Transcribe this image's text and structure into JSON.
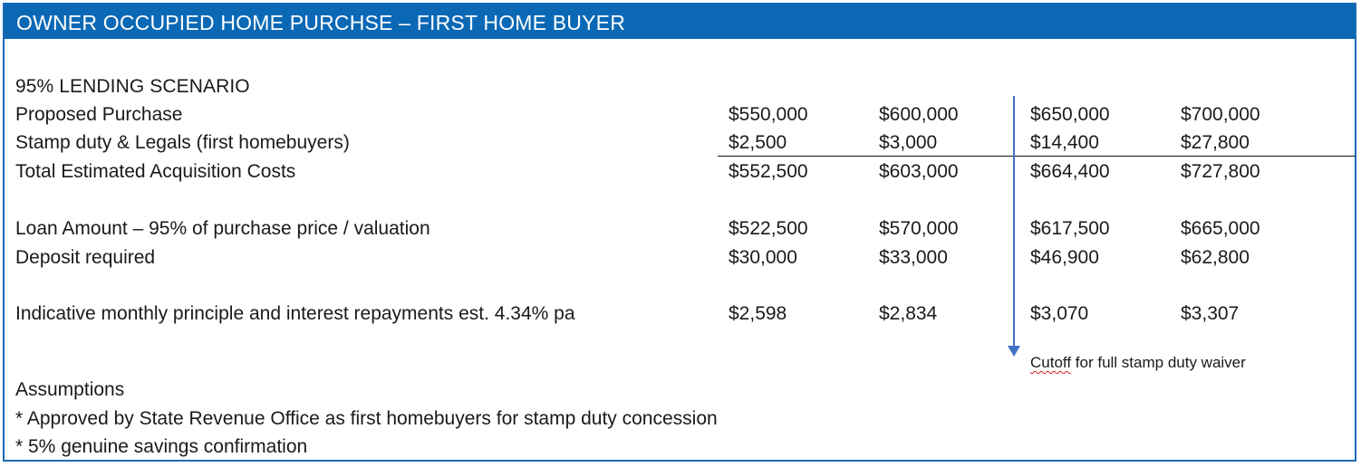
{
  "title": "OWNER OCCUPIED HOME PURCHSE – FIRST HOME BUYER",
  "scenario_heading": "95% LENDING SCENARIO",
  "rows": [
    {
      "label": "Proposed Purchase",
      "values": [
        "$550,000",
        "$600,000",
        "$650,000",
        "$700,000"
      ]
    },
    {
      "label": "Stamp duty & Legals (first homebuyers)",
      "values": [
        "$2,500",
        "$3,000",
        "$14,400",
        "$27,800"
      ]
    },
    {
      "label": "Total Estimated Acquisition Costs",
      "values": [
        "$552,500",
        "$603,000",
        "$664,400",
        "$727,800"
      ]
    },
    {
      "label": "Loan Amount – 95% of purchase price / valuation",
      "values": [
        "$522,500",
        "$570,000",
        "$617,500",
        "$665,000"
      ]
    },
    {
      "label": "Deposit required",
      "values": [
        "$30,000",
        "$33,000",
        "$46,900",
        "$62,800"
      ]
    },
    {
      "label": "Indicative monthly principle and interest repayments est. 4.34% pa",
      "values": [
        "$2,598",
        "$2,834",
        "$3,070",
        "$3,307"
      ]
    }
  ],
  "cutoff_note": {
    "first_word": "Cutoff",
    "rest": " for full stamp duty waiver"
  },
  "assumptions": {
    "heading": "Assumptions",
    "items": [
      "* Approved by State Revenue Office as first homebuyers for stamp duty concession",
      "* 5% genuine savings confirmation"
    ]
  },
  "colors": {
    "header_bg": "#0b68b5",
    "arrow": "#4472c4",
    "border": "#1f6bb5"
  }
}
